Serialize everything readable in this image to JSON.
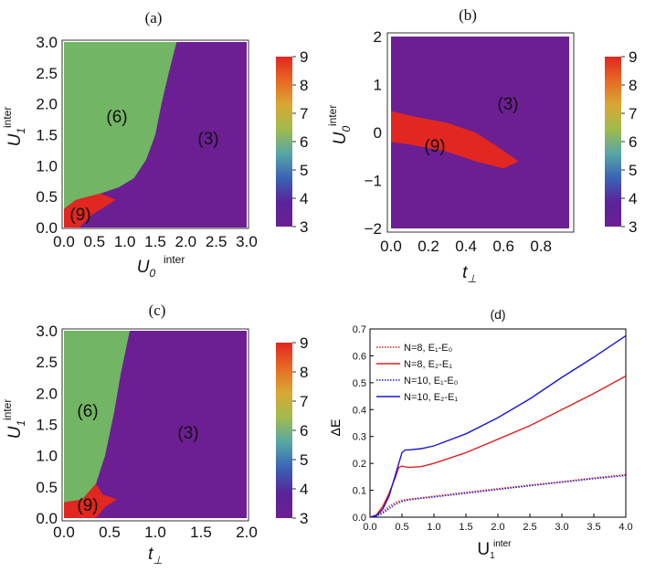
{
  "colors": {
    "purple": "#6c1f93",
    "green": "#72b564",
    "red": "#e1271f",
    "red_line": "#e02020",
    "blue_line": "#1818d0"
  },
  "colorbar": {
    "ticks": [
      "9",
      "8",
      "7",
      "6",
      "5",
      "4",
      "3"
    ],
    "stops": [
      "#e1271f",
      "#e76a24",
      "#d8a834",
      "#9fbb4e",
      "#56a6a6",
      "#3a62b6",
      "#5a239a",
      "#6c1f93"
    ]
  },
  "chart_data": [
    {
      "panel": "(a)",
      "type": "heatmap",
      "title": "(a)",
      "xlabel": "U_0^inter",
      "ylabel": "U_1^inter",
      "xlim": [
        0,
        3
      ],
      "ylim": [
        0,
        3
      ],
      "x_ticks": [
        "0.0",
        "0.5",
        "1.0",
        "1.5",
        "2.0",
        "2.5",
        "3.0"
      ],
      "y_ticks": [
        "0.0",
        "0.5",
        "1.0",
        "1.5",
        "2.0",
        "2.5",
        "3.0"
      ],
      "colorbar_range": [
        3,
        9
      ],
      "region_labels": [
        "(6)",
        "(3)",
        "(9)"
      ],
      "regions": [
        {
          "label": "(6)",
          "value": 6,
          "boundary": [
            [
              0,
              0.3
            ],
            [
              0.2,
              0.45
            ],
            [
              0.6,
              0.55
            ],
            [
              0.9,
              0.65
            ],
            [
              1.15,
              0.8
            ],
            [
              1.35,
              1.1
            ],
            [
              1.5,
              1.5
            ],
            [
              1.6,
              2.0
            ],
            [
              1.72,
              2.5
            ],
            [
              1.85,
              3.0
            ]
          ]
        },
        {
          "label": "(9)",
          "value": 9,
          "boundary": [
            [
              0,
              0
            ],
            [
              0,
              0.3
            ],
            [
              0.2,
              0.45
            ],
            [
              0.6,
              0.55
            ],
            [
              0.85,
              0.45
            ],
            [
              0.45,
              0.2
            ],
            [
              0.25,
              0
            ]
          ]
        }
      ]
    },
    {
      "panel": "(b)",
      "type": "heatmap",
      "title": "(b)",
      "xlabel": "t_⊥",
      "ylabel": "U_0^inter",
      "xlim": [
        0,
        0.95
      ],
      "ylim": [
        -2,
        2
      ],
      "x_ticks": [
        "0.0",
        "0.2",
        "0.4",
        "0.6",
        "0.8"
      ],
      "y_ticks": [
        "2",
        "1",
        "0",
        "−1",
        "−2"
      ],
      "colorbar_range": [
        3,
        9
      ],
      "region_labels": [
        "(3)",
        "(9)"
      ],
      "regions": [
        {
          "label": "(9)",
          "value": 9,
          "boundary": [
            [
              0,
              0.45
            ],
            [
              0.1,
              0.35
            ],
            [
              0.3,
              0.2
            ],
            [
              0.45,
              0.0
            ],
            [
              0.55,
              -0.25
            ],
            [
              0.68,
              -0.6
            ],
            [
              0.6,
              -0.75
            ],
            [
              0.45,
              -0.6
            ],
            [
              0.3,
              -0.4
            ],
            [
              0.1,
              -0.25
            ],
            [
              0,
              -0.2
            ]
          ]
        }
      ]
    },
    {
      "panel": "(c)",
      "type": "heatmap",
      "title": "(c)",
      "xlabel": "t_⊥",
      "ylabel": "U_1^inter",
      "xlim": [
        0,
        2
      ],
      "ylim": [
        0,
        3
      ],
      "x_ticks": [
        "0.0",
        "0.5",
        "1.0",
        "1.5",
        "2.0"
      ],
      "y_ticks": [
        "0.0",
        "0.5",
        "1.0",
        "1.5",
        "2.0",
        "2.5",
        "3.0"
      ],
      "colorbar_range": [
        3,
        9
      ],
      "region_labels": [
        "(6)",
        "(3)",
        "(9)"
      ],
      "regions": [
        {
          "label": "(6)",
          "value": 6,
          "boundary": [
            [
              0,
              0.25
            ],
            [
              0.2,
              0.3
            ],
            [
              0.35,
              0.55
            ],
            [
              0.45,
              1.0
            ],
            [
              0.55,
              1.7
            ],
            [
              0.62,
              2.3
            ],
            [
              0.72,
              3.0
            ]
          ]
        },
        {
          "label": "(9)",
          "value": 9,
          "boundary": [
            [
              0,
              0
            ],
            [
              0,
              0.25
            ],
            [
              0.2,
              0.3
            ],
            [
              0.35,
              0.55
            ],
            [
              0.42,
              0.38
            ],
            [
              0.58,
              0.3
            ],
            [
              0.45,
              0.18
            ],
            [
              0.35,
              0
            ]
          ]
        }
      ]
    },
    {
      "panel": "(d)",
      "type": "line",
      "title": "(d)",
      "xlabel": "U_1^inter",
      "ylabel": "ΔE",
      "xlim": [
        0,
        4
      ],
      "ylim": [
        0,
        0.7
      ],
      "x_ticks": [
        "0.0",
        "0.5",
        "1.0",
        "1.5",
        "2.0",
        "2.5",
        "3.0",
        "3.5",
        "4.0"
      ],
      "y_ticks": [
        "0.0",
        "0.1",
        "0.2",
        "0.3",
        "0.4",
        "0.5",
        "0.6",
        "0.7"
      ],
      "legend": [
        "N=8, E₁-E₀",
        "N=8, E₂-E₁",
        "N=10, E₁-E₀",
        "N=10, E₂-E₁"
      ],
      "series": [
        {
          "name": "N=8, E1-E0",
          "style": "dotted",
          "color": "red",
          "x": [
            0,
            0.1,
            0.2,
            0.3,
            0.4,
            0.5,
            0.6,
            0.8,
            1.0,
            1.5,
            2.0,
            2.5,
            3.0,
            3.5,
            4.0
          ],
          "y": [
            0,
            0.005,
            0.02,
            0.04,
            0.055,
            0.063,
            0.067,
            0.072,
            0.078,
            0.092,
            0.106,
            0.119,
            0.132,
            0.146,
            0.158
          ]
        },
        {
          "name": "N=8, E2-E1",
          "style": "solid",
          "color": "red",
          "x": [
            0,
            0.1,
            0.2,
            0.3,
            0.4,
            0.45,
            0.5,
            0.6,
            0.8,
            1.0,
            1.5,
            2.0,
            2.5,
            3.0,
            3.5,
            4.0
          ],
          "y": [
            0,
            0.008,
            0.04,
            0.09,
            0.15,
            0.185,
            0.19,
            0.185,
            0.188,
            0.2,
            0.24,
            0.29,
            0.34,
            0.4,
            0.46,
            0.525
          ]
        },
        {
          "name": "N=10, E1-E0",
          "style": "dotted",
          "color": "blue",
          "x": [
            0,
            0.1,
            0.2,
            0.3,
            0.4,
            0.5,
            0.6,
            0.8,
            1.0,
            1.5,
            2.0,
            2.5,
            3.0,
            3.5,
            4.0
          ],
          "y": [
            0,
            0.004,
            0.015,
            0.032,
            0.048,
            0.058,
            0.064,
            0.07,
            0.075,
            0.089,
            0.103,
            0.117,
            0.13,
            0.143,
            0.155
          ]
        },
        {
          "name": "N=10, E2-E1",
          "style": "solid",
          "color": "blue",
          "x": [
            0,
            0.1,
            0.2,
            0.3,
            0.4,
            0.5,
            0.55,
            0.6,
            0.8,
            1.0,
            1.5,
            2.0,
            2.5,
            3.0,
            3.5,
            4.0
          ],
          "y": [
            0,
            0.006,
            0.03,
            0.08,
            0.16,
            0.24,
            0.25,
            0.25,
            0.255,
            0.265,
            0.31,
            0.37,
            0.44,
            0.52,
            0.595,
            0.675
          ]
        }
      ]
    }
  ]
}
